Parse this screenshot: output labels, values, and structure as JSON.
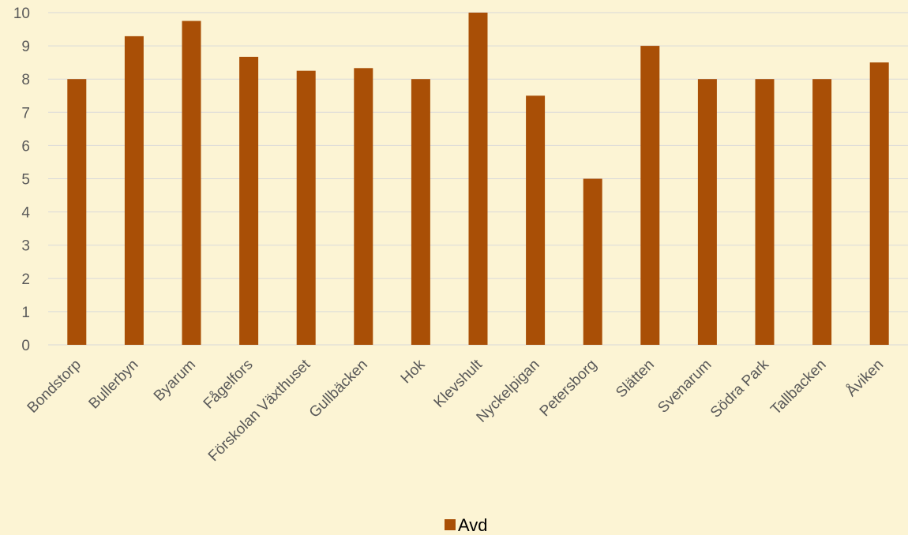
{
  "chart_data": {
    "type": "bar",
    "categories": [
      "Bondstorp",
      "Bullerbyn",
      "Byarum",
      "Fågelfors",
      "Förskolan Växthuset",
      "Gullbäcken",
      "Hok",
      "Klevshult",
      "Nyckelpigan",
      "Petersborg",
      "Slätten",
      "Svenarum",
      "Södra Park",
      "Tallbacken",
      "Åviken"
    ],
    "series": [
      {
        "name": "Avd",
        "values": [
          8,
          9.29,
          9.75,
          8.67,
          8.25,
          8.33,
          8,
          10,
          7.5,
          5,
          9,
          8,
          8,
          8,
          8.5
        ]
      }
    ],
    "y_ticks": [
      "0",
      "1",
      "2",
      "3",
      "4",
      "5",
      "6",
      "7",
      "8",
      "9",
      "10"
    ],
    "ylim": [
      0,
      10
    ],
    "grid": true,
    "legend": "bottom",
    "colors": {
      "bar": "#a94f06",
      "grid": "#d9d9d9",
      "background": "#fcf4d4"
    }
  }
}
